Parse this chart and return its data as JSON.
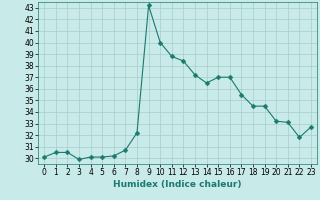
{
  "x": [
    0,
    1,
    2,
    3,
    4,
    5,
    6,
    7,
    8,
    9,
    10,
    11,
    12,
    13,
    14,
    15,
    16,
    17,
    18,
    19,
    20,
    21,
    22,
    23
  ],
  "y": [
    30.1,
    30.5,
    30.5,
    29.9,
    30.1,
    30.1,
    30.2,
    30.7,
    32.2,
    43.2,
    40.0,
    38.8,
    38.4,
    37.2,
    36.5,
    37.0,
    37.0,
    35.5,
    34.5,
    34.5,
    33.2,
    33.1,
    31.8,
    32.7
  ],
  "line_color": "#1a7a6e",
  "marker": "D",
  "marker_size": 2.5,
  "bg_color": "#c8eae8",
  "grid_color": "#a8ccca",
  "xlabel": "Humidex (Indice chaleur)",
  "ylabel": "",
  "ylim": [
    29.5,
    43.5
  ],
  "xlim": [
    -0.5,
    23.5
  ],
  "yticks": [
    30,
    31,
    32,
    33,
    34,
    35,
    36,
    37,
    38,
    39,
    40,
    41,
    42,
    43
  ],
  "xticks": [
    0,
    1,
    2,
    3,
    4,
    5,
    6,
    7,
    8,
    9,
    10,
    11,
    12,
    13,
    14,
    15,
    16,
    17,
    18,
    19,
    20,
    21,
    22,
    23
  ],
  "label_fontsize": 6.5,
  "tick_fontsize": 5.5
}
